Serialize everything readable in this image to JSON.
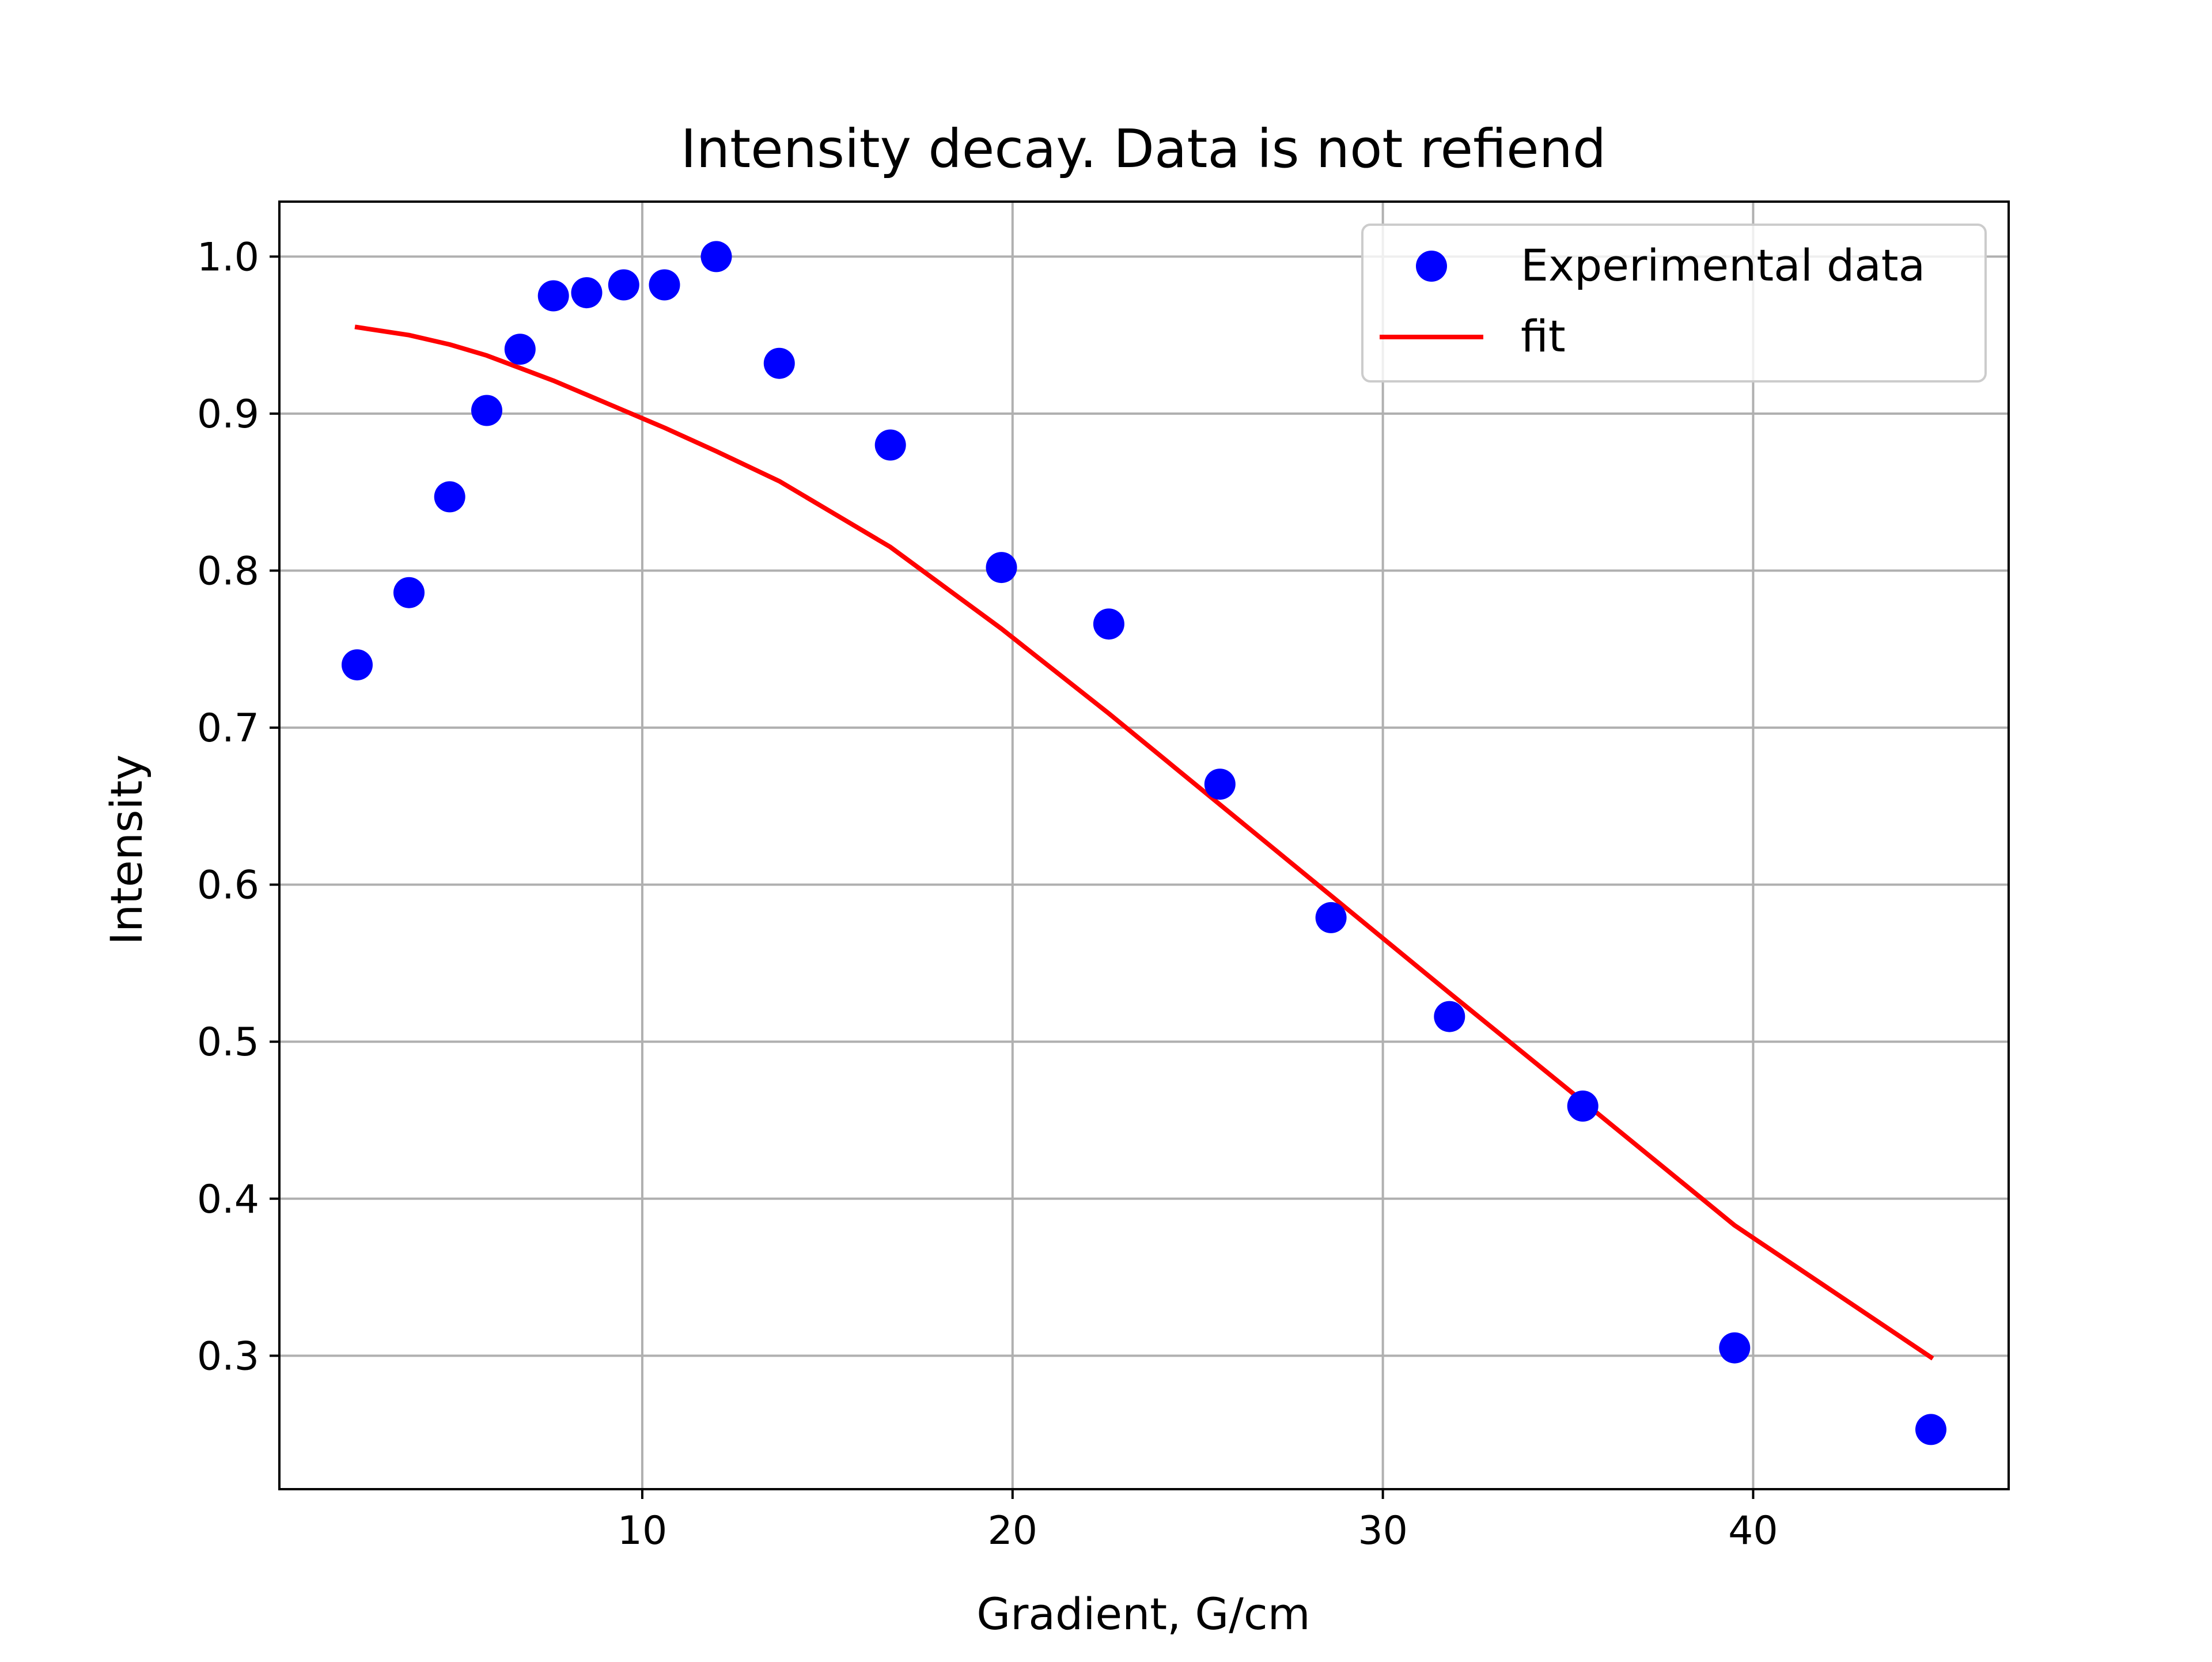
{
  "chart_data": {
    "type": "scatter",
    "title": "Intensity decay. Data is not refiend",
    "xlabel": "Gradient, G/cm",
    "ylabel": "Intensity",
    "xlim": [
      0.2,
      46.9
    ],
    "ylim": [
      0.215,
      1.035
    ],
    "xticks": [
      10,
      20,
      30,
      40
    ],
    "xtick_labels": [
      "10",
      "20",
      "30",
      "40"
    ],
    "yticks": [
      0.3,
      0.4,
      0.5,
      0.6,
      0.7,
      0.8,
      0.9,
      1.0
    ],
    "ytick_labels": [
      "0.3",
      "0.4",
      "0.5",
      "0.6",
      "0.7",
      "0.8",
      "0.9",
      "1.0"
    ],
    "grid": true,
    "legend_position": "top-right",
    "series": [
      {
        "name": "Experimental data",
        "kind": "scatter",
        "color": "#0000ff",
        "x": [
          2.3,
          3.7,
          4.8,
          5.8,
          6.7,
          7.6,
          8.5,
          9.5,
          10.6,
          12.0,
          13.7,
          16.7,
          19.7,
          22.6,
          25.6,
          28.6,
          31.8,
          35.4,
          39.5,
          44.8
        ],
        "y": [
          0.74,
          0.786,
          0.847,
          0.902,
          0.941,
          0.975,
          0.977,
          0.982,
          0.982,
          1.0,
          0.932,
          0.88,
          0.802,
          0.766,
          0.664,
          0.579,
          0.516,
          0.459,
          0.305,
          0.253
        ]
      },
      {
        "name": "fit",
        "kind": "line",
        "color": "#ff0000",
        "x": [
          2.3,
          3.7,
          4.8,
          5.8,
          6.7,
          7.6,
          8.5,
          9.5,
          10.6,
          12.0,
          13.7,
          16.7,
          19.7,
          22.6,
          25.6,
          28.6,
          31.8,
          35.4,
          39.5,
          44.8
        ],
        "y": [
          0.955,
          0.95,
          0.944,
          0.937,
          0.929,
          0.921,
          0.912,
          0.902,
          0.891,
          0.876,
          0.857,
          0.815,
          0.763,
          0.709,
          0.651,
          0.593,
          0.531,
          0.462,
          0.383,
          0.299
        ]
      }
    ]
  }
}
